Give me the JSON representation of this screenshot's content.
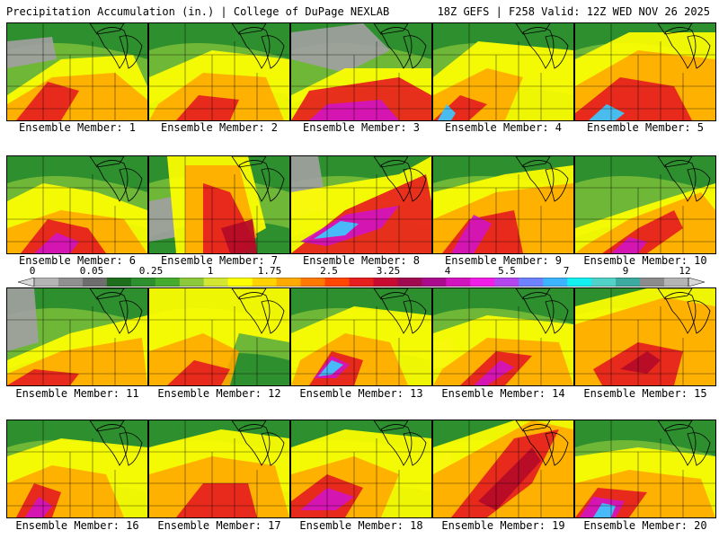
{
  "header": {
    "title_left": "Precipitation Accumulation (in.) | College of DuPage NEXLAB",
    "title_right": "18Z GEFS | F258 Valid: 12Z WED NOV 26 2025"
  },
  "colorbar": {
    "tick_labels": [
      "0",
      "0.05",
      "0.25",
      "1",
      "1.75",
      "2.5",
      "3.25",
      "4",
      "5.5",
      "7",
      "9",
      "12"
    ],
    "colors": [
      "#d8d8d8",
      "#b4b4b4",
      "#909090",
      "#6e6e6e",
      "#1e6e1e",
      "#2e8f2e",
      "#46aa2e",
      "#8cc83c",
      "#d2e632",
      "#ffff00",
      "#ffd200",
      "#ffaa00",
      "#ff7800",
      "#ff4600",
      "#e61e1e",
      "#c80a32",
      "#a00a50",
      "#aa0a8c",
      "#d214be",
      "#f01ee6",
      "#b446f0",
      "#6e82ff",
      "#3cb4ff",
      "#14f0f0",
      "#50d2c8",
      "#3caaa0",
      "#8c8c8c",
      "#b4b4b4",
      "#d8d8d8"
    ]
  },
  "members": [
    {
      "label": "Ensemble Member: 1"
    },
    {
      "label": "Ensemble Member: 2"
    },
    {
      "label": "Ensemble Member: 3"
    },
    {
      "label": "Ensemble Member: 4"
    },
    {
      "label": "Ensemble Member: 5"
    },
    {
      "label": "Ensemble Member: 6"
    },
    {
      "label": "Ensemble Member: 7"
    },
    {
      "label": "Ensemble Member: 8"
    },
    {
      "label": "Ensemble Member: 9"
    },
    {
      "label": "Ensemble Member: 10"
    },
    {
      "label": "Ensemble Member: 11"
    },
    {
      "label": "Ensemble Member: 12"
    },
    {
      "label": "Ensemble Member: 13"
    },
    {
      "label": "Ensemble Member: 14"
    },
    {
      "label": "Ensemble Member: 15"
    },
    {
      "label": "Ensemble Member: 16"
    },
    {
      "label": "Ensemble Member: 17"
    },
    {
      "label": "Ensemble Member: 18"
    },
    {
      "label": "Ensemble Member: 19"
    },
    {
      "label": "Ensemble Member: 20"
    }
  ]
}
